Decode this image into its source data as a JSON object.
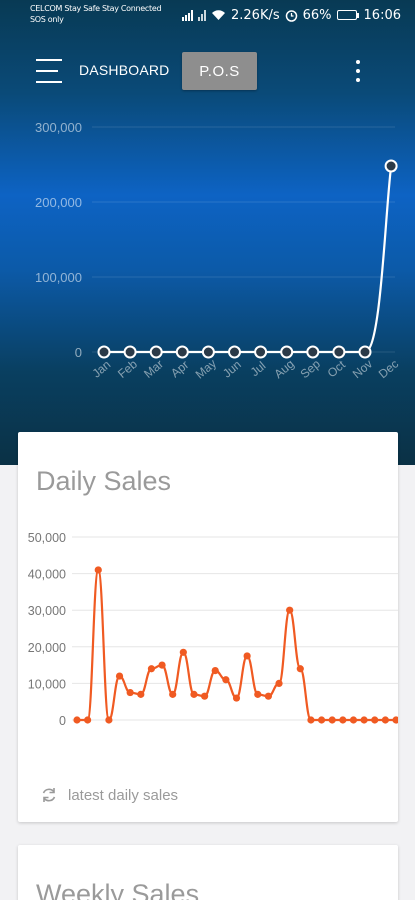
{
  "status_bar": {
    "carrier_line1": "CELCOM Stay Safe Stay Connected",
    "carrier_line2": "SOS only",
    "speed": "2.26K/s",
    "battery": "66%",
    "time": "16:06"
  },
  "header": {
    "menu_icon": "hamburger-menu-icon",
    "title": "DASHBOARD",
    "pos_label": "P.O.S",
    "more_icon": "more-vert-icon"
  },
  "colors": {
    "accent_orange": "#f05a22",
    "hero_line": "#ffffff",
    "card_title": "#9a9a9a"
  },
  "chart_data": [
    {
      "type": "line",
      "categories": [
        "Jan",
        "Feb",
        "Mar",
        "Apr",
        "May",
        "Jun",
        "Jul",
        "Aug",
        "Sep",
        "Oct",
        "Nov",
        "Dec"
      ],
      "values": [
        0,
        0,
        0,
        0,
        0,
        0,
        0,
        0,
        0,
        0,
        0,
        248000
      ],
      "y_ticks": [
        "300,000",
        "200,000",
        "100,000",
        "0"
      ],
      "ylim": [
        0,
        300000
      ],
      "grid": true,
      "title": "",
      "xlabel": "",
      "ylabel": ""
    },
    {
      "type": "line",
      "title": "Daily Sales",
      "values": [
        0,
        0,
        41000,
        0,
        12000,
        7500,
        7000,
        14000,
        15000,
        7000,
        18500,
        7000,
        6500,
        13500,
        11000,
        6000,
        17500,
        7000,
        6500,
        10000,
        30000,
        14000,
        0,
        0,
        0,
        0,
        0,
        0,
        0,
        0,
        0
      ],
      "y_ticks": [
        "50,000",
        "40,000",
        "30,000",
        "20,000",
        "10,000",
        "0"
      ],
      "ylim": [
        0,
        50000
      ],
      "grid": true,
      "xlabel": "",
      "ylabel": ""
    }
  ],
  "daily_footer": {
    "icon": "refresh-icon",
    "text": "latest daily sales"
  },
  "weekly_card": {
    "title": "Weekly Sales"
  }
}
